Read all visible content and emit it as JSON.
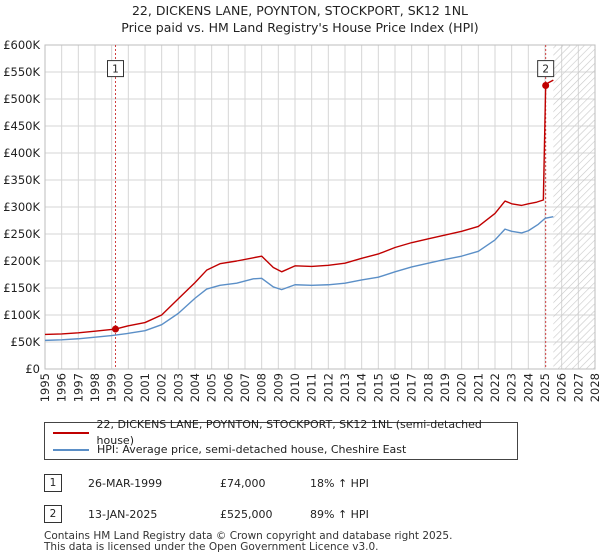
{
  "title_line1": "22, DICKENS LANE, POYNTON, STOCKPORT, SK12 1NL",
  "title_line2": "Price paid vs. HM Land Registry's House Price Index (HPI)",
  "chart_data": {
    "type": "line",
    "title": "22, DICKENS LANE, POYNTON, STOCKPORT, SK12 1NL",
    "subtitle": "Price paid vs. HM Land Registry's House Price Index (HPI)",
    "xlabel": "",
    "ylabel": "",
    "xlim": [
      1995,
      2028
    ],
    "ylim": [
      0,
      600000
    ],
    "grid": true,
    "x_ticks": [
      1995,
      1996,
      1997,
      1998,
      1999,
      2000,
      2001,
      2002,
      2003,
      2004,
      2005,
      2006,
      2007,
      2008,
      2009,
      2010,
      2011,
      2012,
      2013,
      2014,
      2015,
      2016,
      2017,
      2018,
      2019,
      2020,
      2021,
      2022,
      2023,
      2024,
      2025,
      2026,
      2027,
      2028
    ],
    "y_ticks": [
      0,
      50000,
      100000,
      150000,
      200000,
      250000,
      300000,
      350000,
      400000,
      450000,
      500000,
      550000,
      600000
    ],
    "y_tick_labels": [
      "£0",
      "£50K",
      "£100K",
      "£150K",
      "£200K",
      "£250K",
      "£300K",
      "£350K",
      "£400K",
      "£450K",
      "£500K",
      "£550K",
      "£600K"
    ],
    "forecast_start": 2025.5,
    "series": [
      {
        "name": "22, DICKENS LANE, POYNTON, STOCKPORT, SK12 1NL (semi-detached house)",
        "color": "#c00000",
        "x": [
          1995.0,
          1996.0,
          1997.0,
          1998.0,
          1999.23,
          2000.0,
          2001.0,
          2002.0,
          2003.0,
          2004.0,
          2004.7,
          2005.5,
          2006.5,
          2007.5,
          2008.0,
          2008.7,
          2009.2,
          2010.0,
          2011.0,
          2012.0,
          2013.0,
          2014.0,
          2015.0,
          2016.0,
          2017.0,
          2018.0,
          2019.0,
          2020.0,
          2021.0,
          2022.0,
          2022.6,
          2023.0,
          2023.6,
          2024.0,
          2024.5,
          2024.9,
          2025.04,
          2025.2,
          2025.5
        ],
        "values": [
          64000,
          65000,
          67000,
          70000,
          74000,
          80000,
          86000,
          100000,
          130000,
          160000,
          183000,
          195000,
          200000,
          206000,
          209000,
          188000,
          180000,
          191000,
          190000,
          192000,
          196000,
          205000,
          213000,
          225000,
          234000,
          241000,
          248000,
          255000,
          264000,
          288000,
          311000,
          306000,
          303000,
          306000,
          309000,
          313000,
          525000,
          530000,
          535000
        ]
      },
      {
        "name": "HPI: Average price, semi-detached house, Cheshire East",
        "color": "#5b8fc7",
        "x": [
          1995.0,
          1996.0,
          1997.0,
          1998.0,
          1999.0,
          2000.0,
          2001.0,
          2002.0,
          2003.0,
          2004.0,
          2004.7,
          2005.5,
          2006.5,
          2007.5,
          2008.0,
          2008.7,
          2009.2,
          2010.0,
          2011.0,
          2012.0,
          2013.0,
          2014.0,
          2015.0,
          2016.0,
          2017.0,
          2018.0,
          2019.0,
          2020.0,
          2021.0,
          2022.0,
          2022.6,
          2023.0,
          2023.6,
          2024.0,
          2024.6,
          2025.0,
          2025.5
        ],
        "values": [
          53000,
          54000,
          56000,
          59000,
          62000,
          66000,
          71000,
          82000,
          103000,
          131000,
          148000,
          155000,
          159000,
          167000,
          168000,
          152000,
          147000,
          156000,
          155000,
          156000,
          159000,
          165000,
          170000,
          180000,
          189000,
          196000,
          203000,
          209000,
          218000,
          239000,
          259000,
          255000,
          252000,
          256000,
          268000,
          279000,
          282000
        ]
      }
    ],
    "annotations": [
      {
        "label": "1",
        "x": 1999.23,
        "y": 74000
      },
      {
        "label": "2",
        "x": 2025.04,
        "y": 525000
      }
    ]
  },
  "legend": {
    "property_label": "22, DICKENS LANE, POYNTON, STOCKPORT, SK12 1NL (semi-detached house)",
    "property_color": "#c00000",
    "hpi_label": "HPI: Average price, semi-detached house, Cheshire East",
    "hpi_color": "#5b8fc7"
  },
  "transactions": [
    {
      "num": "1",
      "date": "26-MAR-1999",
      "price": "£74,000",
      "hpi": "18% ↑ HPI"
    },
    {
      "num": "2",
      "date": "13-JAN-2025",
      "price": "£525,000",
      "hpi": "89% ↑ HPI"
    }
  ],
  "footer": {
    "line1": "Contains HM Land Registry data © Crown copyright and database right 2025.",
    "line2": "This data is licensed under the Open Government Licence v3.0."
  }
}
